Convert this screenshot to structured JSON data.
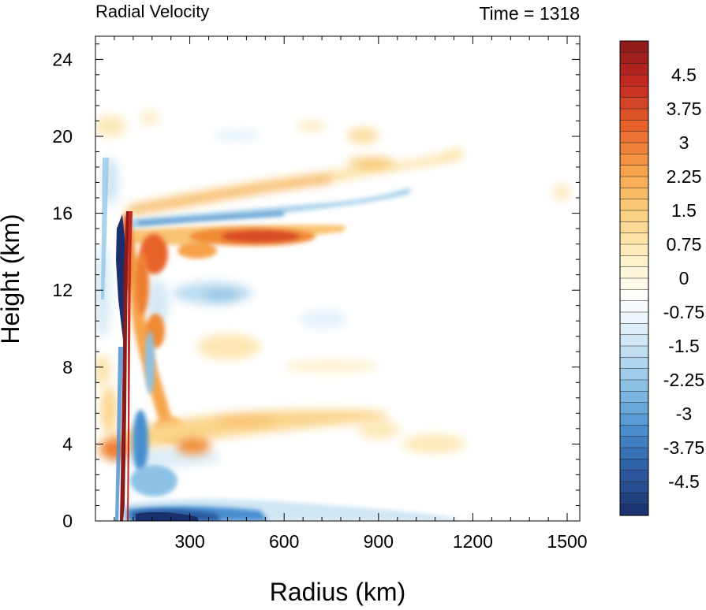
{
  "chart_data": {
    "type": "heatmap",
    "title": "Radial Velocity",
    "subtitle": "Time = 1318",
    "xlabel": "Radius (km)",
    "ylabel": "Height (km)",
    "xlim": [
      0,
      1540
    ],
    "ylim": [
      0,
      25.2
    ],
    "x_ticks": [
      300,
      600,
      900,
      1200,
      1500
    ],
    "x_tick_labels": [
      "300",
      "600",
      "900",
      "1200",
      "1500"
    ],
    "y_ticks": [
      0,
      4,
      8,
      12,
      16,
      20,
      24
    ],
    "y_tick_labels": [
      "0",
      "4",
      "8",
      "12",
      "16",
      "20",
      "24"
    ],
    "colorbar": {
      "min": -5.25,
      "max": 5.25,
      "step": 0.25,
      "tick_labels": [
        "4.5",
        "3.75",
        "3",
        "2.25",
        "1.5",
        "0.75",
        "0",
        "-0.75",
        "-1.5",
        "-2.25",
        "-3",
        "-3.75",
        "-4.5"
      ],
      "tick_values": [
        4.5,
        3.75,
        3,
        2.25,
        1.5,
        0.75,
        0,
        -0.75,
        -1.5,
        -2.25,
        -3,
        -3.75,
        -4.5
      ]
    },
    "colormap": [
      "#1a2f6b",
      "#2c5aa0",
      "#4a8fcf",
      "#8cc2e6",
      "#cfe6f4",
      "#ffffff",
      "#fdf0c4",
      "#fbd07f",
      "#f6a24a",
      "#e8642b",
      "#c42a22",
      "#8b1a1a"
    ],
    "features": [
      {
        "name": "eyewall outflow jet",
        "x": [
          150,
          640
        ],
        "z": 14.7,
        "peak_ms": 3.9
      },
      {
        "name": "upper inflow layer",
        "x": [
          150,
          1050
        ],
        "z": 16.0,
        "peak_ms": -1.6
      },
      {
        "name": "upper outflow layer",
        "x": [
          150,
          1150
        ],
        "z": 17.2,
        "peak_ms": 2.0
      },
      {
        "name": "eyewall updraft strip",
        "x": [
          90,
          110
        ],
        "z": [
          0,
          16
        ],
        "peak_ms": 4.9
      },
      {
        "name": "eye inflow strip",
        "x": [
          75,
          95
        ],
        "z": [
          8,
          16
        ],
        "peak_ms": -5.0
      },
      {
        "name": "boundary layer inflow",
        "x": [
          110,
          560
        ],
        "z": 0.4,
        "peak_ms": -5.0
      },
      {
        "name": "low level outflow",
        "x": [
          0,
          800
        ],
        "z": 4.4,
        "peak_ms": 2.6
      },
      {
        "name": "mid level inflow",
        "x": [
          250,
          800
        ],
        "z": 11.8,
        "peak_ms": -1.4
      }
    ]
  }
}
